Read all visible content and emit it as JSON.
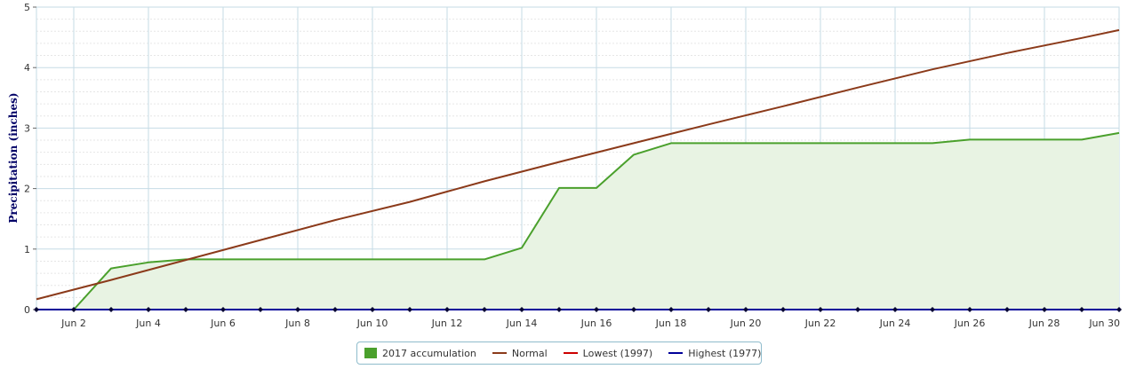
{
  "chart_data": {
    "type": "area",
    "title": "",
    "xlabel": "",
    "ylabel": "Precipitation (inches)",
    "ylim": [
      0,
      5
    ],
    "yticks": [
      "0",
      "1",
      "2",
      "3",
      "4",
      "5"
    ],
    "x_days": [
      1,
      2,
      3,
      4,
      5,
      6,
      7,
      8,
      9,
      10,
      11,
      12,
      13,
      14,
      15,
      16,
      17,
      18,
      19,
      20,
      21,
      22,
      23,
      24,
      25,
      26,
      27,
      28,
      29,
      30
    ],
    "xtick_labels": [
      "Jun 2",
      "Jun 4",
      "Jun 6",
      "Jun 8",
      "Jun 10",
      "Jun 12",
      "Jun 14",
      "Jun 16",
      "Jun 18",
      "Jun 20",
      "Jun 22",
      "Jun 24",
      "Jun 26",
      "Jun 28",
      "Jun 30"
    ],
    "xtick_days": [
      2,
      4,
      6,
      8,
      10,
      12,
      14,
      16,
      18,
      20,
      22,
      24,
      26,
      28,
      30
    ],
    "grid": true,
    "legend_position": "bottom-center",
    "series": [
      {
        "name": "2017 accumulation",
        "kind": "area",
        "color": "#4aa02c",
        "fill": "#e8f3e3",
        "x": [
          2,
          3,
          4,
          5,
          6,
          7,
          8,
          9,
          10,
          11,
          12,
          13,
          14,
          15,
          16,
          17,
          18,
          19,
          20,
          21,
          22,
          23,
          24,
          25,
          26,
          27,
          28,
          29,
          30
        ],
        "values": [
          0,
          0.68,
          0.78,
          0.83,
          0.83,
          0.83,
          0.83,
          0.83,
          0.83,
          0.83,
          0.83,
          0.83,
          1.02,
          2.01,
          2.01,
          2.56,
          2.75,
          2.75,
          2.75,
          2.75,
          2.75,
          2.75,
          2.75,
          2.75,
          2.81,
          2.81,
          2.81,
          2.81,
          2.92
        ]
      },
      {
        "name": "Normal",
        "kind": "line",
        "color": "#8b3a1a",
        "x": [
          1,
          3,
          5,
          7,
          9,
          11,
          13,
          15,
          17,
          19,
          21,
          23,
          25,
          27,
          29,
          30
        ],
        "values": [
          0.17,
          0.49,
          0.82,
          1.15,
          1.48,
          1.78,
          2.12,
          2.44,
          2.75,
          3.06,
          3.36,
          3.67,
          3.97,
          4.24,
          4.49,
          4.62
        ]
      },
      {
        "name": "Lowest (1997)",
        "kind": "line",
        "color": "#cc0000",
        "x": [
          1,
          30
        ],
        "values": [
          0,
          0
        ]
      },
      {
        "name": "Highest (1977)",
        "kind": "line",
        "color": "#000099",
        "x": [
          1,
          30
        ],
        "values": [
          0,
          0
        ]
      }
    ]
  }
}
